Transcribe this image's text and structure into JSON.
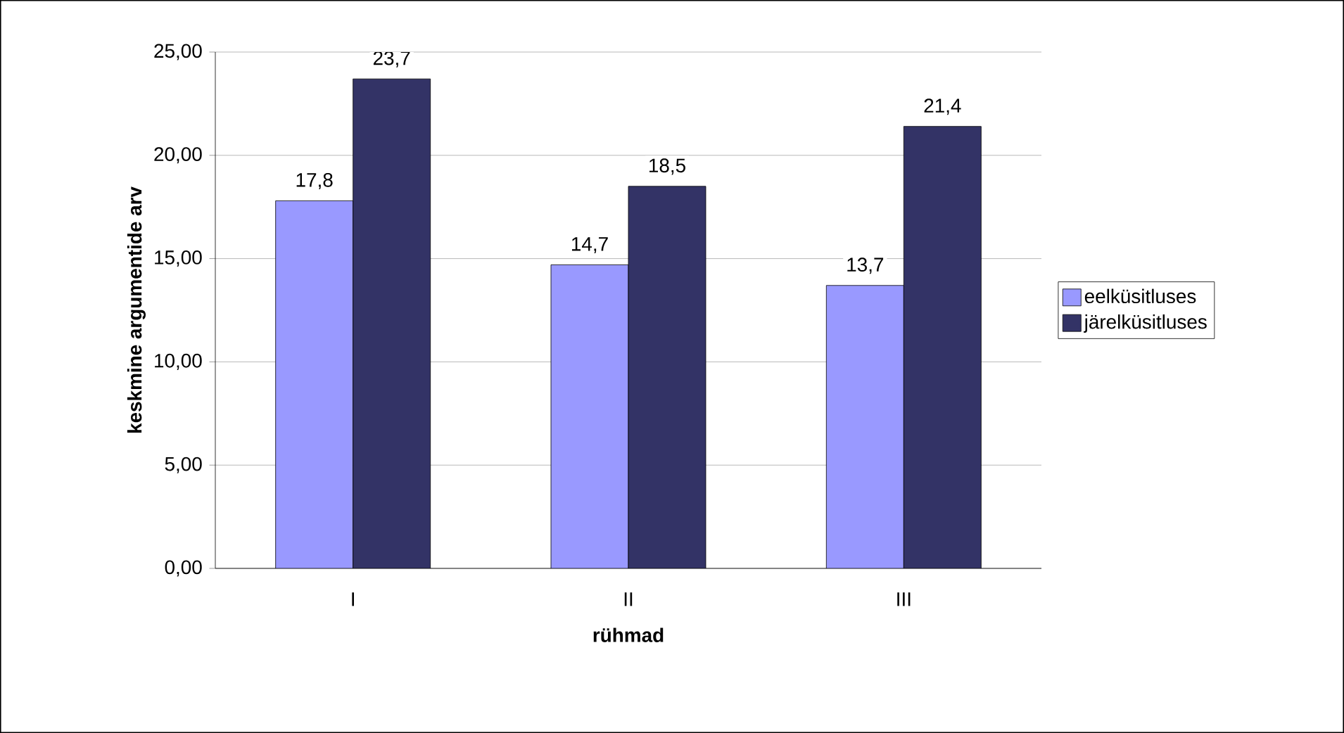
{
  "chart_data": {
    "type": "bar",
    "xlabel": "rühmad",
    "ylabel": "keskmine argumentide arv",
    "categories": [
      "I",
      "II",
      "III"
    ],
    "series": [
      {
        "name": "eelküsitluses",
        "color": "#9999ff",
        "values": [
          17.8,
          14.7,
          13.7
        ],
        "value_labels": [
          "17,8",
          "14,7",
          "13,7"
        ]
      },
      {
        "name": "järelküsitluses",
        "color": "#333366",
        "values": [
          23.7,
          18.5,
          21.4
        ],
        "value_labels": [
          "23,7",
          "18,5",
          "21,4"
        ]
      }
    ],
    "ylim": [
      0,
      25
    ],
    "yticks": [
      {
        "value": 0,
        "label": "0,00"
      },
      {
        "value": 5,
        "label": "5,00"
      },
      {
        "value": 10,
        "label": "10,00"
      },
      {
        "value": 15,
        "label": "15,00"
      },
      {
        "value": 20,
        "label": "20,00"
      },
      {
        "value": 25,
        "label": "25,00"
      }
    ],
    "grid": "y",
    "legend": "right"
  }
}
